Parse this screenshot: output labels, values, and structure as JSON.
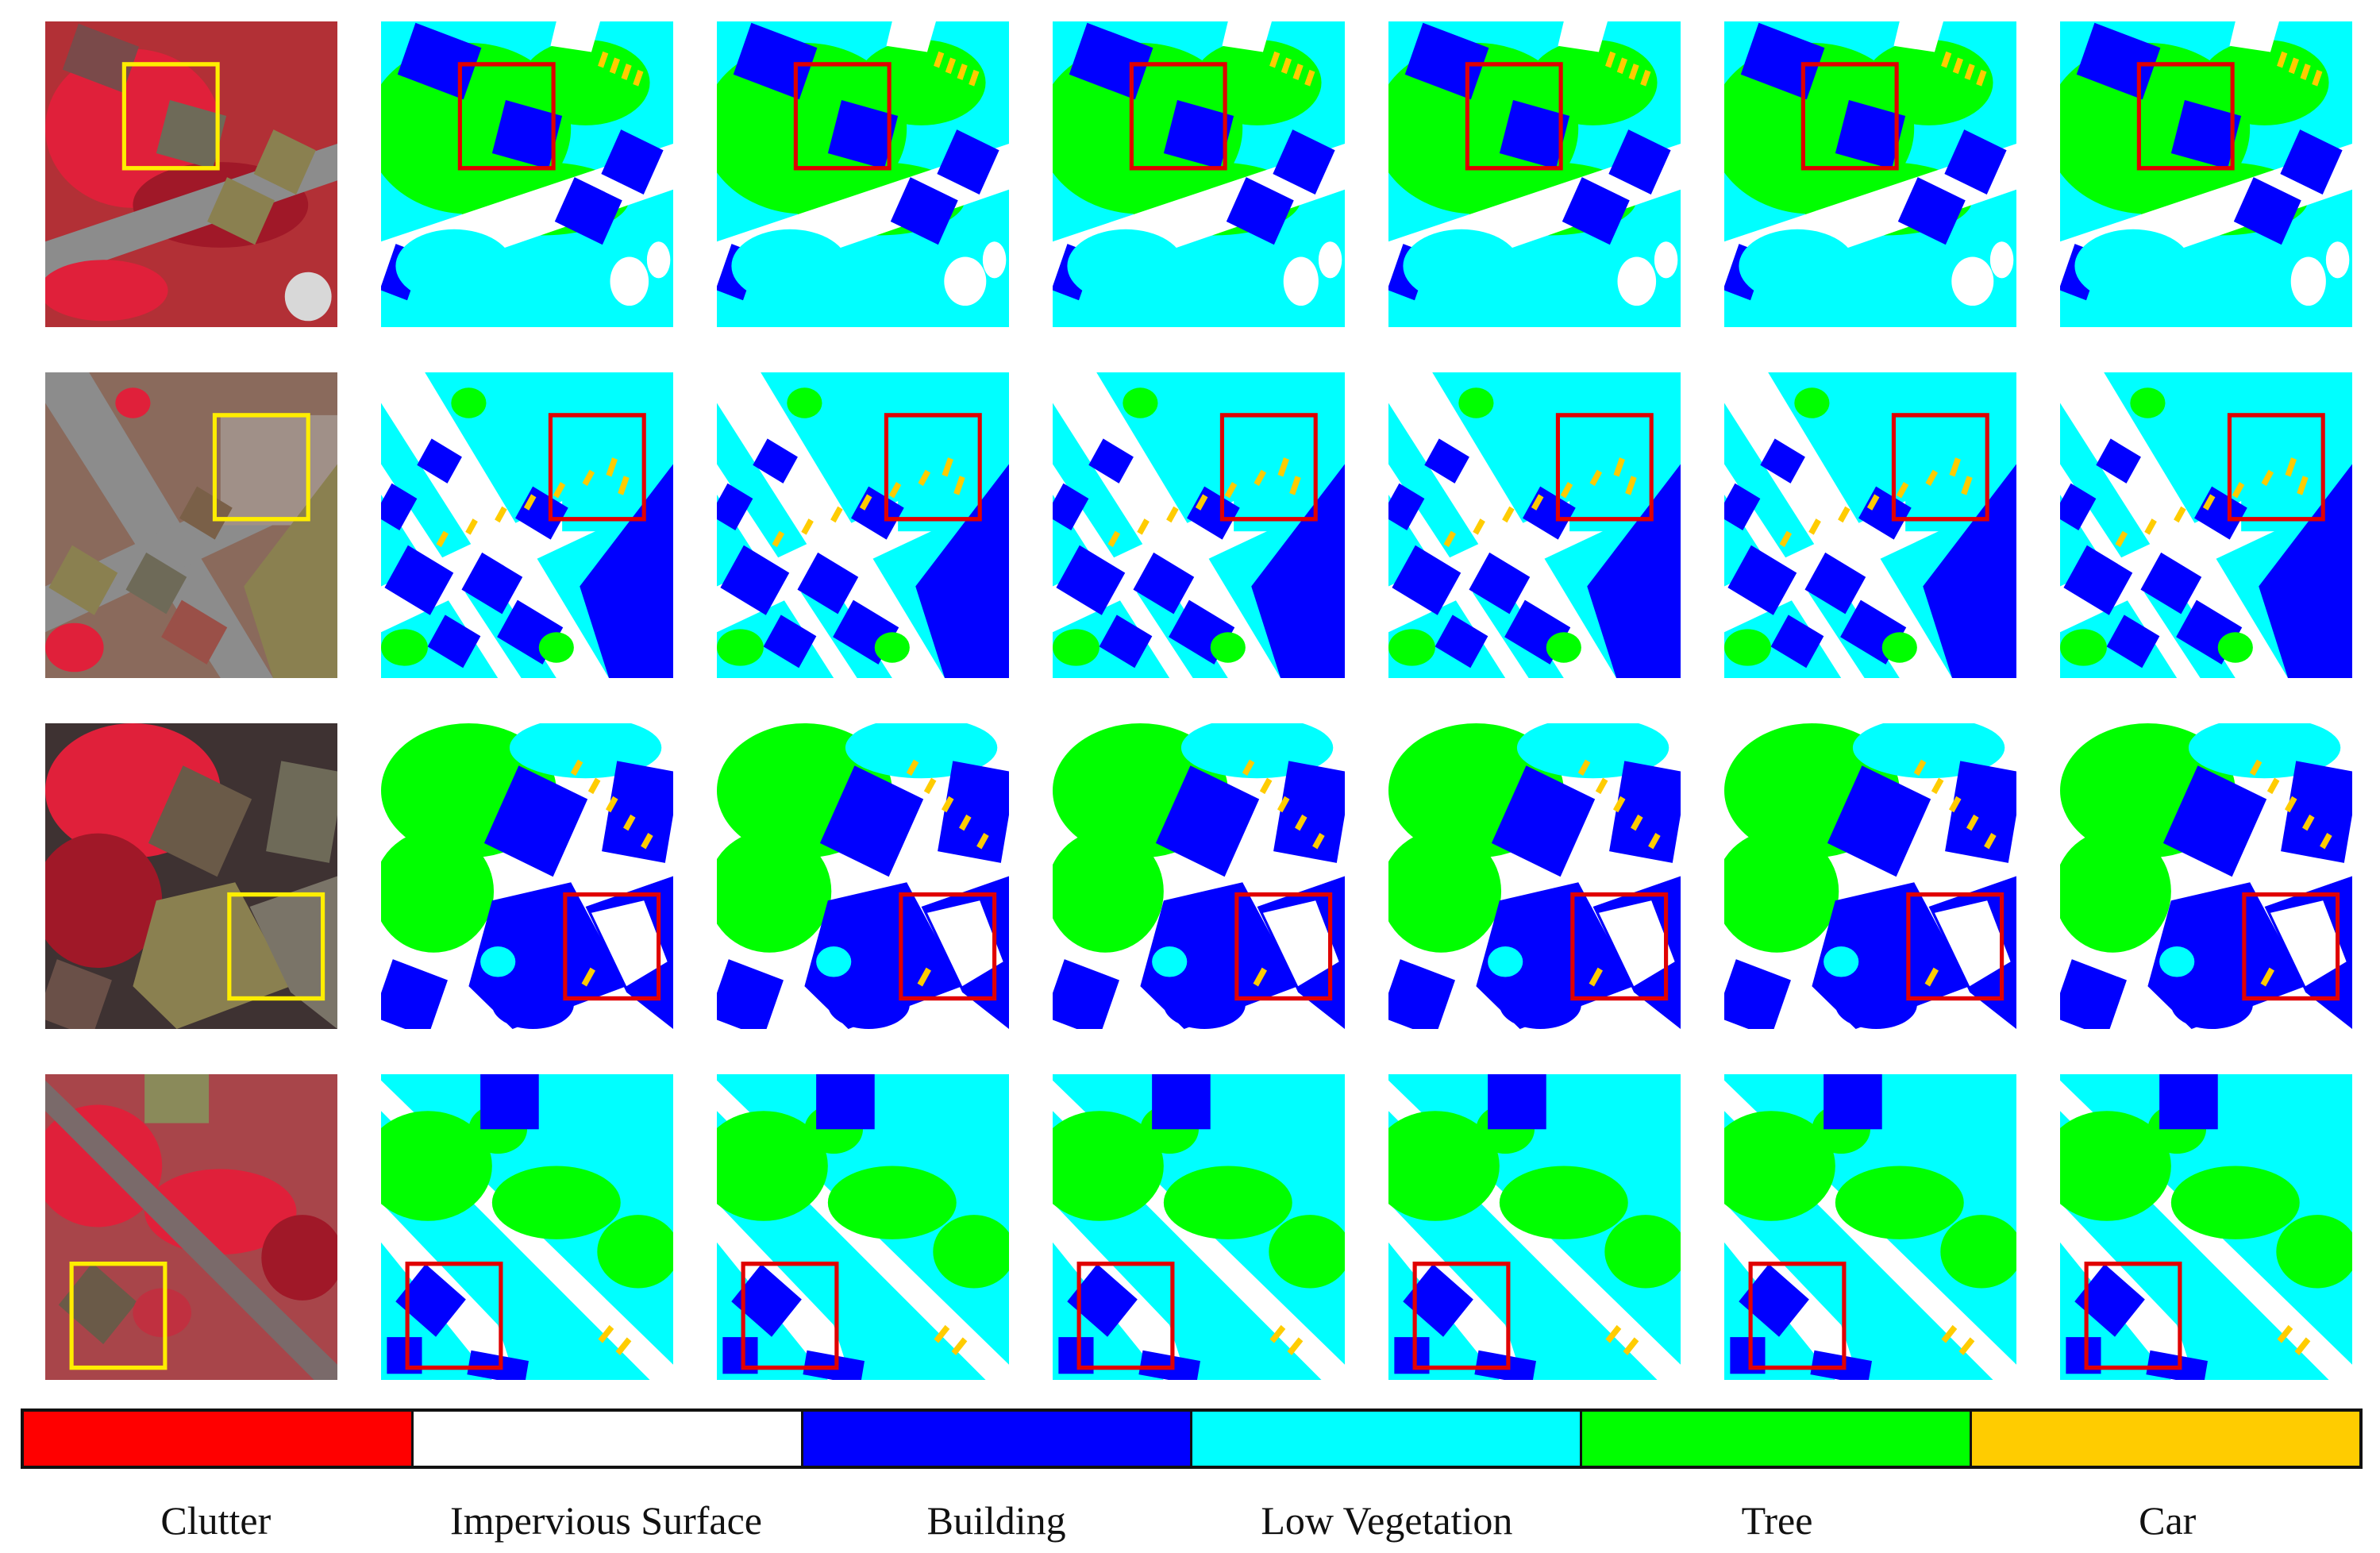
{
  "colors": {
    "clutter": "#ff0000",
    "impervious": "#ffffff",
    "building": "#0000ff",
    "low_vegetation": "#00ffff",
    "tree": "#00ff00",
    "car": "#ffcc00",
    "highlight_rgb": "#ffee00",
    "highlight_map": "#e00000"
  },
  "figure": {
    "rows": [
      {
        "name": "row-1"
      },
      {
        "name": "row-2"
      },
      {
        "name": "row-3"
      },
      {
        "name": "row-4"
      }
    ],
    "columns": [
      {
        "name": "irrg-image",
        "kind": "photo"
      },
      {
        "name": "result-1",
        "kind": "map"
      },
      {
        "name": "result-2",
        "kind": "map"
      },
      {
        "name": "result-3",
        "kind": "map"
      },
      {
        "name": "result-4",
        "kind": "map"
      },
      {
        "name": "result-5",
        "kind": "map"
      },
      {
        "name": "result-6",
        "kind": "map"
      }
    ]
  },
  "legend": {
    "items": [
      {
        "label": "Clutter",
        "color": "#ff0000"
      },
      {
        "label": "Impervious Surface",
        "color": "#ffffff"
      },
      {
        "label": "Building",
        "color": "#0000ff"
      },
      {
        "label": "Low Vegetation",
        "color": "#00ffff"
      },
      {
        "label": "Tree",
        "color": "#00ff00"
      },
      {
        "label": "Car",
        "color": "#ffcc00"
      }
    ]
  }
}
